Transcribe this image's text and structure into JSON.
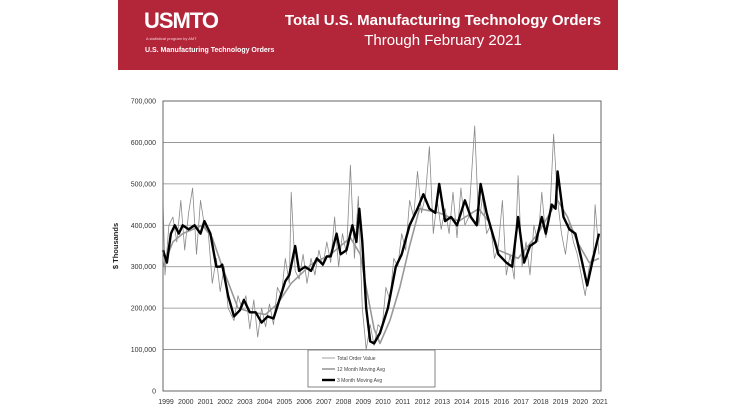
{
  "banner": {
    "logo": "USMTO",
    "logo_tagline": "A statistical program by AMT",
    "subtitle": "U.S. Manufacturing Technology Orders",
    "title_line1": "Total U.S. Manufacturing Technology Orders",
    "title_line2": "Through February 2021",
    "color": "#b3263a"
  },
  "chart_data": {
    "type": "line",
    "ylabel": "$ Thousands",
    "xlabel": "",
    "ylim": [
      0,
      700000
    ],
    "xlim": [
      1999,
      2021.2
    ],
    "yticks": [
      "0",
      "100,000",
      "200,000",
      "300,000",
      "400,000",
      "500,000",
      "600,000",
      "700,000"
    ],
    "xticks": [
      "1999",
      "2000",
      "2001",
      "2002",
      "2003",
      "2004",
      "2005",
      "2006",
      "2007",
      "2008",
      "2009",
      "2010",
      "2011",
      "2012",
      "2013",
      "2014",
      "2015",
      "2016",
      "2017",
      "2018",
      "2019",
      "2020",
      "2021"
    ],
    "grid": true,
    "legend_position": "bottom-center",
    "series": [
      {
        "name": "Total Order Value",
        "color": "#8a8a8a",
        "points": [
          [
            1999,
            460000
          ],
          [
            1999.1,
            280000
          ],
          [
            1999.3,
            400000
          ],
          [
            1999.5,
            420000
          ],
          [
            1999.7,
            360000
          ],
          [
            1999.9,
            460000
          ],
          [
            2000.1,
            340000
          ],
          [
            2000.3,
            430000
          ],
          [
            2000.5,
            490000
          ],
          [
            2000.7,
            330000
          ],
          [
            2000.9,
            460000
          ],
          [
            2001.1,
            400000
          ],
          [
            2001.3,
            380000
          ],
          [
            2001.5,
            260000
          ],
          [
            2001.7,
            320000
          ],
          [
            2001.9,
            240000
          ],
          [
            2002.1,
            300000
          ],
          [
            2002.3,
            200000
          ],
          [
            2002.6,
            170000
          ],
          [
            2002.8,
            230000
          ],
          [
            2003.0,
            200000
          ],
          [
            2003.2,
            230000
          ],
          [
            2003.4,
            150000
          ],
          [
            2003.6,
            220000
          ],
          [
            2003.8,
            130000
          ],
          [
            2004.0,
            200000
          ],
          [
            2004.2,
            155000
          ],
          [
            2004.4,
            210000
          ],
          [
            2004.6,
            160000
          ],
          [
            2004.8,
            250000
          ],
          [
            2005.0,
            230000
          ],
          [
            2005.2,
            320000
          ],
          [
            2005.4,
            260000
          ],
          [
            2005.5,
            480000
          ],
          [
            2005.7,
            290000
          ],
          [
            2005.9,
            270000
          ],
          [
            2006.1,
            330000
          ],
          [
            2006.3,
            260000
          ],
          [
            2006.5,
            320000
          ],
          [
            2006.7,
            280000
          ],
          [
            2006.9,
            340000
          ],
          [
            2007.1,
            300000
          ],
          [
            2007.3,
            360000
          ],
          [
            2007.5,
            310000
          ],
          [
            2007.7,
            420000
          ],
          [
            2007.9,
            300000
          ],
          [
            2008.1,
            380000
          ],
          [
            2008.3,
            330000
          ],
          [
            2008.5,
            545000
          ],
          [
            2008.7,
            320000
          ],
          [
            2008.9,
            470000
          ],
          [
            2009.1,
            200000
          ],
          [
            2009.3,
            100000
          ],
          [
            2009.5,
            160000
          ],
          [
            2009.7,
            110000
          ],
          [
            2009.9,
            160000
          ],
          [
            2010.1,
            150000
          ],
          [
            2010.3,
            250000
          ],
          [
            2010.5,
            220000
          ],
          [
            2010.7,
            320000
          ],
          [
            2010.9,
            300000
          ],
          [
            2011.1,
            380000
          ],
          [
            2011.3,
            340000
          ],
          [
            2011.5,
            460000
          ],
          [
            2011.7,
            420000
          ],
          [
            2011.9,
            530000
          ],
          [
            2012.1,
            430000
          ],
          [
            2012.3,
            470000
          ],
          [
            2012.5,
            590000
          ],
          [
            2012.7,
            380000
          ],
          [
            2012.9,
            460000
          ],
          [
            2013.1,
            390000
          ],
          [
            2013.3,
            440000
          ],
          [
            2013.5,
            380000
          ],
          [
            2013.7,
            480000
          ],
          [
            2013.9,
            370000
          ],
          [
            2014.1,
            490000
          ],
          [
            2014.3,
            400000
          ],
          [
            2014.5,
            420000
          ],
          [
            2014.8,
            640000
          ],
          [
            2015.0,
            400000
          ],
          [
            2015.2,
            470000
          ],
          [
            2015.4,
            380000
          ],
          [
            2015.6,
            400000
          ],
          [
            2015.8,
            320000
          ],
          [
            2016.0,
            350000
          ],
          [
            2016.2,
            460000
          ],
          [
            2016.4,
            280000
          ],
          [
            2016.6,
            330000
          ],
          [
            2016.8,
            270000
          ],
          [
            2017.0,
            520000
          ],
          [
            2017.2,
            300000
          ],
          [
            2017.4,
            360000
          ],
          [
            2017.6,
            280000
          ],
          [
            2017.8,
            400000
          ],
          [
            2018.0,
            360000
          ],
          [
            2018.2,
            480000
          ],
          [
            2018.4,
            370000
          ],
          [
            2018.6,
            420000
          ],
          [
            2018.8,
            620000
          ],
          [
            2019.0,
            460000
          ],
          [
            2019.2,
            380000
          ],
          [
            2019.4,
            330000
          ],
          [
            2019.6,
            410000
          ],
          [
            2019.8,
            360000
          ],
          [
            2020.0,
            330000
          ],
          [
            2020.2,
            280000
          ],
          [
            2020.4,
            230000
          ],
          [
            2020.6,
            300000
          ],
          [
            2020.8,
            330000
          ],
          [
            2020.9,
            450000
          ],
          [
            2021.1,
            330000
          ]
        ]
      },
      {
        "name": "12 Month Moving Avg",
        "color": "#999999",
        "points": [
          [
            1999,
            300000
          ],
          [
            1999.5,
            360000
          ],
          [
            2000,
            380000
          ],
          [
            2001,
            400000
          ],
          [
            2001.5,
            370000
          ],
          [
            2002,
            300000
          ],
          [
            2002.8,
            200000
          ],
          [
            2003.5,
            190000
          ],
          [
            2004.2,
            185000
          ],
          [
            2004.8,
            210000
          ],
          [
            2005.5,
            260000
          ],
          [
            2006.5,
            305000
          ],
          [
            2007.5,
            330000
          ],
          [
            2008.5,
            370000
          ],
          [
            2009.0,
            330000
          ],
          [
            2009.3,
            250000
          ],
          [
            2009.7,
            150000
          ],
          [
            2010.0,
            115000
          ],
          [
            2010.5,
            170000
          ],
          [
            2011,
            250000
          ],
          [
            2011.5,
            350000
          ],
          [
            2012,
            440000
          ],
          [
            2013,
            430000
          ],
          [
            2014,
            410000
          ],
          [
            2015,
            440000
          ],
          [
            2015.5,
            410000
          ],
          [
            2016,
            340000
          ],
          [
            2017,
            320000
          ],
          [
            2018,
            380000
          ],
          [
            2018.5,
            420000
          ],
          [
            2019,
            460000
          ],
          [
            2019.5,
            420000
          ],
          [
            2020,
            360000
          ],
          [
            2020.6,
            310000
          ],
          [
            2021.1,
            320000
          ]
        ]
      },
      {
        "name": "3 Month Moving Avg",
        "color": "#000000",
        "points": [
          [
            1999,
            340000
          ],
          [
            1999.2,
            310000
          ],
          [
            1999.4,
            380000
          ],
          [
            1999.6,
            400000
          ],
          [
            1999.8,
            380000
          ],
          [
            2000,
            400000
          ],
          [
            2000.3,
            390000
          ],
          [
            2000.6,
            400000
          ],
          [
            2000.9,
            380000
          ],
          [
            2001.1,
            410000
          ],
          [
            2001.4,
            380000
          ],
          [
            2001.7,
            300000
          ],
          [
            2001.9,
            300000
          ],
          [
            2002.0,
            305000
          ],
          [
            2002.3,
            230000
          ],
          [
            2002.6,
            180000
          ],
          [
            2002.9,
            195000
          ],
          [
            2003.1,
            220000
          ],
          [
            2003.4,
            190000
          ],
          [
            2003.7,
            190000
          ],
          [
            2004.0,
            165000
          ],
          [
            2004.3,
            180000
          ],
          [
            2004.6,
            175000
          ],
          [
            2004.9,
            220000
          ],
          [
            2005.2,
            265000
          ],
          [
            2005.4,
            280000
          ],
          [
            2005.7,
            350000
          ],
          [
            2005.9,
            290000
          ],
          [
            2006.2,
            300000
          ],
          [
            2006.5,
            290000
          ],
          [
            2006.8,
            320000
          ],
          [
            2007.1,
            305000
          ],
          [
            2007.3,
            325000
          ],
          [
            2007.5,
            325000
          ],
          [
            2007.8,
            380000
          ],
          [
            2008.0,
            330000
          ],
          [
            2008.3,
            340000
          ],
          [
            2008.6,
            400000
          ],
          [
            2008.8,
            360000
          ],
          [
            2008.95,
            440000
          ],
          [
            2009.1,
            360000
          ],
          [
            2009.3,
            200000
          ],
          [
            2009.5,
            120000
          ],
          [
            2009.7,
            115000
          ],
          [
            2010.0,
            140000
          ],
          [
            2010.4,
            200000
          ],
          [
            2010.8,
            300000
          ],
          [
            2011.1,
            330000
          ],
          [
            2011.5,
            400000
          ],
          [
            2011.9,
            440000
          ],
          [
            2012.2,
            475000
          ],
          [
            2012.5,
            440000
          ],
          [
            2012.8,
            430000
          ],
          [
            2013.0,
            500000
          ],
          [
            2013.3,
            410000
          ],
          [
            2013.6,
            420000
          ],
          [
            2013.9,
            400000
          ],
          [
            2014.3,
            460000
          ],
          [
            2014.6,
            420000
          ],
          [
            2014.9,
            400000
          ],
          [
            2015.1,
            500000
          ],
          [
            2015.4,
            430000
          ],
          [
            2015.7,
            380000
          ],
          [
            2016.0,
            330000
          ],
          [
            2016.4,
            310000
          ],
          [
            2016.7,
            300000
          ],
          [
            2017.0,
            420000
          ],
          [
            2017.3,
            310000
          ],
          [
            2017.6,
            350000
          ],
          [
            2017.9,
            360000
          ],
          [
            2018.2,
            420000
          ],
          [
            2018.4,
            380000
          ],
          [
            2018.7,
            450000
          ],
          [
            2018.9,
            440000
          ],
          [
            2019.0,
            530000
          ],
          [
            2019.3,
            420000
          ],
          [
            2019.6,
            390000
          ],
          [
            2019.9,
            380000
          ],
          [
            2020.2,
            320000
          ],
          [
            2020.5,
            255000
          ],
          [
            2020.8,
            320000
          ],
          [
            2021.1,
            380000
          ]
        ]
      }
    ]
  }
}
